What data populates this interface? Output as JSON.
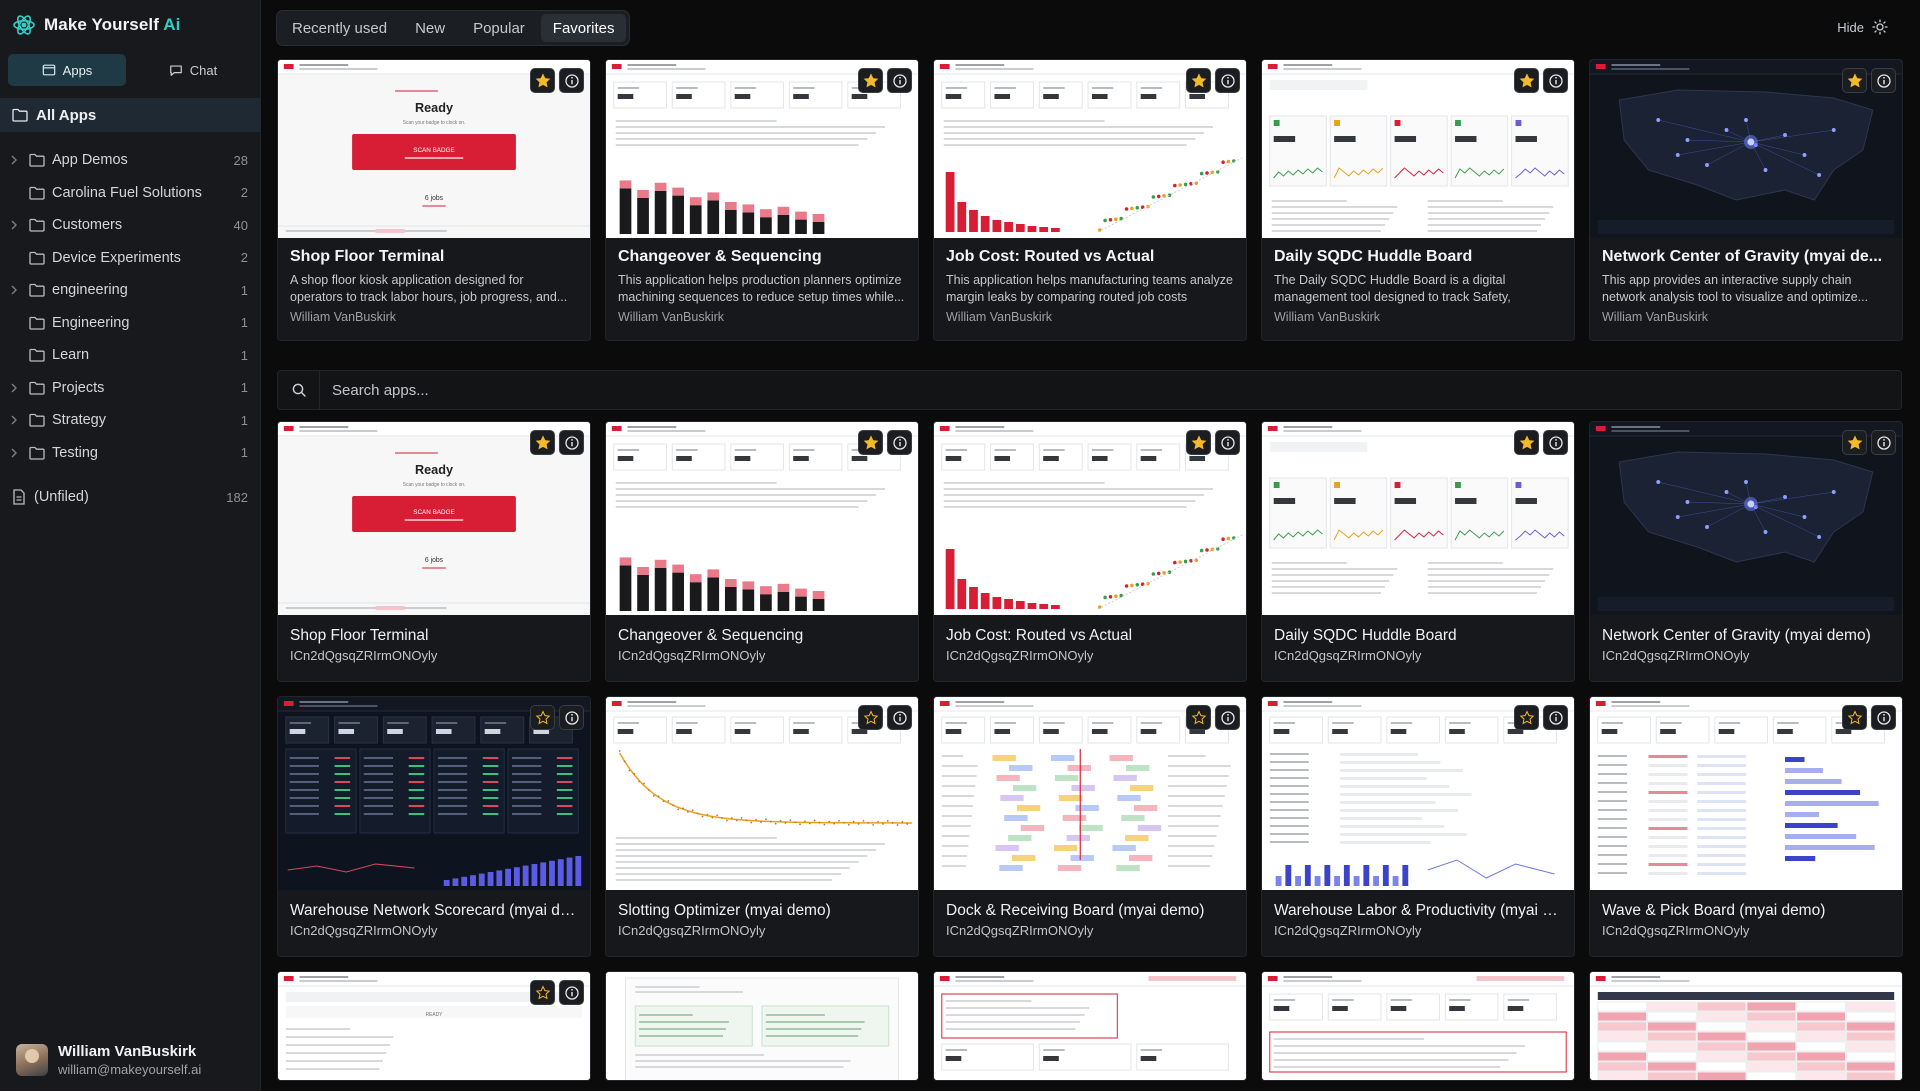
{
  "brand": {
    "name": "Make Yourself",
    "accent": "Ai"
  },
  "modes": [
    {
      "label": "Apps",
      "icon": "app-window-icon"
    },
    {
      "label": "Chat",
      "icon": "chat-bubble-icon"
    }
  ],
  "sidebar": {
    "all_apps": "All Apps",
    "folders": [
      {
        "label": "App Demos",
        "count": "28",
        "expandable": true
      },
      {
        "label": "Carolina Fuel Solutions",
        "count": "2",
        "expandable": false
      },
      {
        "label": "Customers",
        "count": "40",
        "expandable": true
      },
      {
        "label": "Device Experiments",
        "count": "2",
        "expandable": false
      },
      {
        "label": "engineering",
        "count": "1",
        "expandable": true
      },
      {
        "label": "Engineering",
        "count": "1",
        "expandable": false
      },
      {
        "label": "Learn",
        "count": "1",
        "expandable": false
      },
      {
        "label": "Projects",
        "count": "1",
        "expandable": true
      },
      {
        "label": "Strategy",
        "count": "1",
        "expandable": true
      },
      {
        "label": "Testing",
        "count": "1",
        "expandable": true
      }
    ],
    "unfiled": {
      "label": "(Unfiled)",
      "count": "182"
    }
  },
  "user": {
    "name": "William VanBuskirk",
    "email": "william@makeyourself.ai"
  },
  "tabs": [
    "Recently used",
    "New",
    "Popular",
    "Favorites"
  ],
  "active_tab": "Favorites",
  "hide_label": "Hide",
  "favorites": [
    {
      "title": "Shop Floor Terminal",
      "description": "A shop floor kiosk application designed for operators to track labor hours, job progress, and...",
      "author": "William VanBuskirk",
      "shot": "kiosk",
      "thumb": {
        "status": "Ready",
        "subtitle": "Scan your badge to clock on.",
        "button": "SCAN BADGE",
        "stat": "6 jobs"
      }
    },
    {
      "title": "Changeover & Sequencing",
      "description": "This application helps production planners optimize machining sequences to reduce setup times while...",
      "author": "William VanBuskirk",
      "shot": "bars"
    },
    {
      "title": "Job Cost: Routed vs Actual",
      "description": "This application helps manufacturing teams analyze margin leaks by comparing routed job costs agains...",
      "author": "William VanBuskirk",
      "shot": "jobcost"
    },
    {
      "title": "Daily SQDC Huddle Board",
      "description": "The Daily SQDC Huddle Board is a digital management tool designed to track Safety, Quality...",
      "author": "William VanBuskirk",
      "shot": "sqdc"
    },
    {
      "title": "Network Center of Gravity (myai de...",
      "description": "This app provides an interactive supply chain network analysis tool to visualize and optimize...",
      "author": "William VanBuskirk",
      "shot": "map"
    }
  ],
  "search": {
    "placeholder": "Search apps..."
  },
  "apps": [
    {
      "title": "Shop Floor Terminal",
      "id": "ICn2dQgsqZRIrmONOyly",
      "shot": "kiosk",
      "favorite": true,
      "dark": false,
      "thumb": {
        "status": "Ready",
        "subtitle": "Scan your badge to clock on.",
        "button": "SCAN BADGE",
        "stat": "6 jobs"
      }
    },
    {
      "title": "Changeover & Sequencing",
      "id": "ICn2dQgsqZRIrmONOyly",
      "shot": "bars",
      "favorite": true,
      "dark": false
    },
    {
      "title": "Job Cost: Routed vs Actual",
      "id": "ICn2dQgsqZRIrmONOyly",
      "shot": "jobcost",
      "favorite": true,
      "dark": false
    },
    {
      "title": "Daily SQDC Huddle Board",
      "id": "ICn2dQgsqZRIrmONOyly",
      "shot": "sqdc",
      "favorite": true,
      "dark": false
    },
    {
      "title": "Network Center of Gravity (myai demo)",
      "id": "ICn2dQgsqZRIrmONOyly",
      "shot": "map",
      "favorite": true,
      "dark": true
    },
    {
      "title": "Warehouse Network Scorecard (myai de...",
      "id": "ICn2dQgsqZRIrmONOyly",
      "shot": "scorecard",
      "favorite": false,
      "dark": true
    },
    {
      "title": "Slotting Optimizer (myai demo)",
      "id": "ICn2dQgsqZRIrmONOyly",
      "shot": "slotting",
      "favorite": false,
      "dark": false
    },
    {
      "title": "Dock & Receiving Board (myai demo)",
      "id": "ICn2dQgsqZRIrmONOyly",
      "shot": "dock",
      "favorite": false,
      "dark": false
    },
    {
      "title": "Warehouse Labor & Productivity (myai de...",
      "id": "ICn2dQgsqZRIrmONOyly",
      "shot": "labor",
      "favorite": false,
      "dark": false
    },
    {
      "title": "Wave & Pick Board (myai demo)",
      "id": "ICn2dQgsqZRIrmONOyly",
      "shot": "wave",
      "favorite": false,
      "dark": false
    },
    {
      "title": "",
      "id": "",
      "shot": "production",
      "favorite": false,
      "dark": false,
      "partial": true,
      "thumb": {
        "status": "READY"
      }
    },
    {
      "title": "",
      "id": "",
      "shot": "doc",
      "favorite": false,
      "dark": false,
      "partial": true,
      "nobadge": true
    },
    {
      "title": "",
      "id": "",
      "shot": "redbox",
      "favorite": false,
      "dark": false,
      "partial": true,
      "nobadge": true
    },
    {
      "title": "",
      "id": "",
      "shot": "redbox2",
      "favorite": false,
      "dark": false,
      "partial": true,
      "nobadge": true
    },
    {
      "title": "",
      "id": "",
      "shot": "heat",
      "favorite": false,
      "dark": false,
      "partial": true,
      "nobadge": true
    }
  ],
  "colors": {
    "accent": "#2fd1c4",
    "star": "#f2b92a",
    "brand_red": "#d81e34"
  }
}
